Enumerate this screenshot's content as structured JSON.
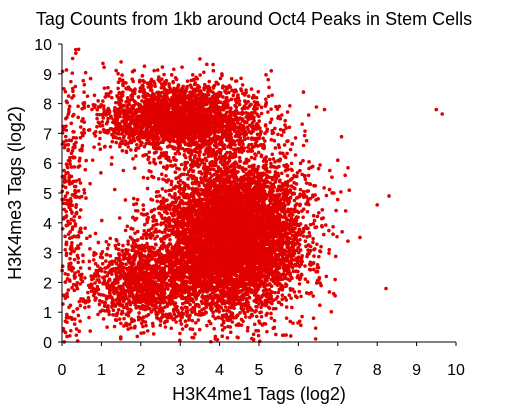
{
  "chart_data": {
    "type": "scatter",
    "title": "Tag Counts from 1kb around Oct4 Peaks in Stem Cells",
    "xlabel": "H3K4me1 Tags (log2)",
    "ylabel": "H3K4me3 Tags (log2)",
    "xlim": [
      0,
      10
    ],
    "ylim": [
      0,
      10
    ],
    "xticks": [
      0,
      1,
      2,
      3,
      4,
      5,
      6,
      7,
      8,
      9,
      10
    ],
    "yticks": [
      0,
      1,
      2,
      3,
      4,
      5,
      6,
      7,
      8,
      9,
      10
    ],
    "grid": false,
    "marker_color": "#e00000",
    "series": [
      {
        "density_clusters": [
          {
            "region": "high-H3K4me3 cluster",
            "center_x": 3.0,
            "center_y": 7.5,
            "spread_x": 1.0,
            "spread_y": 0.6,
            "approx_points": 2600
          },
          {
            "region": "main low-H3K4me3 cluster",
            "center_x": 4.3,
            "center_y": 3.6,
            "spread_x": 0.9,
            "spread_y": 1.3,
            "approx_points": 6500
          },
          {
            "region": "left-side low tail",
            "center_x": 2.2,
            "center_y": 2.0,
            "spread_x": 0.8,
            "spread_y": 0.7,
            "approx_points": 1400
          },
          {
            "region": "left edge vertical band",
            "center_x": 0.2,
            "center_y": 5.0,
            "spread_x": 0.2,
            "spread_y": 2.8,
            "approx_points": 350
          }
        ],
        "outliers": [
          {
            "x": 9.5,
            "y": 7.8
          },
          {
            "x": 9.65,
            "y": 7.65
          },
          {
            "x": 8.3,
            "y": 4.9
          },
          {
            "x": 8.0,
            "y": 4.6
          },
          {
            "x": 7.2,
            "y": 4.4
          },
          {
            "x": 7.0,
            "y": 6.1
          },
          {
            "x": 6.9,
            "y": 5.0
          },
          {
            "x": 3.5,
            "y": 9.5
          },
          {
            "x": 1.5,
            "y": 9.4
          }
        ]
      }
    ]
  }
}
